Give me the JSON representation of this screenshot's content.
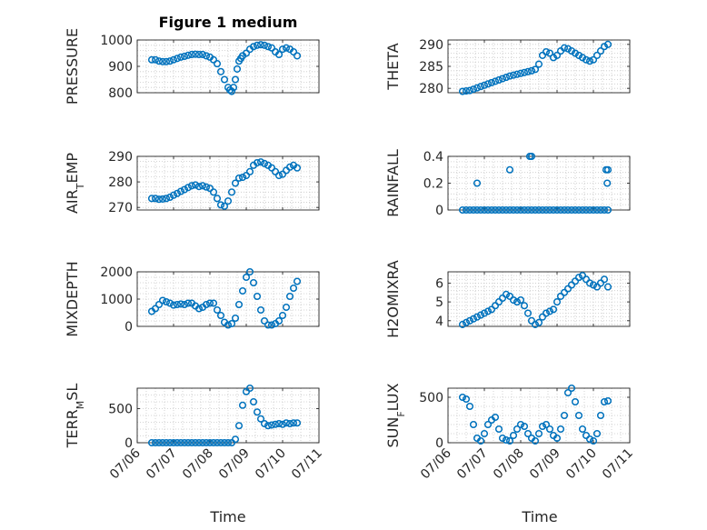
{
  "title": "Figure 1 medium",
  "xlabel": "Time",
  "colors": {
    "marker": "#0072BD",
    "axis": "#262626",
    "grid": "#c8c8c8"
  },
  "x_ticks": [
    "07/06",
    "07/07",
    "07/08",
    "07/09",
    "07/10",
    "07/11"
  ],
  "chart_data": [
    {
      "type": "scatter",
      "ylabel": "PRESSURE",
      "ylim": [
        800,
        1000
      ],
      "yticks": [
        800,
        900,
        1000
      ],
      "grid": true,
      "x": [
        6.4,
        6.5,
        6.6,
        6.7,
        6.8,
        6.9,
        7.0,
        7.1,
        7.2,
        7.3,
        7.4,
        7.5,
        7.6,
        7.7,
        7.8,
        7.9,
        8.0,
        8.1,
        8.2,
        8.3,
        8.4,
        8.5,
        8.55,
        8.6,
        8.65,
        8.7,
        8.75,
        8.8,
        8.85,
        8.9,
        9.0,
        9.1,
        9.2,
        9.3,
        9.4,
        9.5,
        9.6,
        9.7,
        9.8,
        9.9,
        10.0,
        10.1,
        10.2,
        10.3,
        10.4
      ],
      "y": [
        925,
        925,
        920,
        918,
        918,
        920,
        925,
        930,
        935,
        938,
        942,
        945,
        946,
        945,
        945,
        940,
        935,
        925,
        910,
        880,
        850,
        820,
        810,
        805,
        820,
        850,
        890,
        920,
        930,
        940,
        950,
        965,
        975,
        980,
        982,
        980,
        975,
        970,
        955,
        945,
        965,
        970,
        965,
        955,
        940
      ]
    },
    {
      "type": "scatter",
      "ylabel": "THETA",
      "ylim": [
        279,
        291
      ],
      "yticks": [
        280,
        285,
        290
      ],
      "grid": true,
      "x": [
        6.4,
        6.5,
        6.6,
        6.7,
        6.8,
        6.9,
        7.0,
        7.1,
        7.2,
        7.3,
        7.4,
        7.5,
        7.6,
        7.7,
        7.8,
        7.9,
        8.0,
        8.1,
        8.2,
        8.3,
        8.4,
        8.5,
        8.6,
        8.7,
        8.8,
        8.9,
        9.0,
        9.1,
        9.2,
        9.3,
        9.4,
        9.5,
        9.6,
        9.7,
        9.8,
        9.9,
        10.0,
        10.1,
        10.2,
        10.3,
        10.4
      ],
      "y": [
        279.3,
        279.4,
        279.5,
        279.8,
        280.1,
        280.4,
        280.7,
        281.0,
        281.3,
        281.6,
        281.9,
        282.2,
        282.5,
        282.8,
        283.0,
        283.2,
        283.4,
        283.6,
        283.8,
        284.0,
        284.3,
        285.5,
        287.5,
        288.3,
        288.0,
        287.0,
        287.5,
        288.5,
        289.2,
        289.0,
        288.5,
        288.0,
        287.5,
        287.0,
        286.5,
        286.2,
        286.5,
        287.5,
        288.5,
        289.5,
        290.0
      ]
    },
    {
      "type": "scatter",
      "ylabel": "AIR_TEMP",
      "ylim": [
        269,
        290
      ],
      "yticks": [
        270,
        280,
        290
      ],
      "grid": true,
      "x": [
        6.4,
        6.5,
        6.6,
        6.7,
        6.8,
        6.9,
        7.0,
        7.1,
        7.2,
        7.3,
        7.4,
        7.5,
        7.6,
        7.7,
        7.8,
        7.9,
        8.0,
        8.1,
        8.2,
        8.3,
        8.4,
        8.5,
        8.6,
        8.7,
        8.8,
        8.9,
        9.0,
        9.1,
        9.2,
        9.3,
        9.4,
        9.5,
        9.6,
        9.7,
        9.8,
        9.9,
        10.0,
        10.1,
        10.2,
        10.3,
        10.4
      ],
      "y": [
        273.5,
        273.5,
        273.2,
        273.3,
        273.5,
        274.0,
        274.8,
        275.5,
        276.3,
        277.0,
        277.8,
        278.5,
        278.8,
        278.2,
        278.5,
        278.0,
        277.5,
        276.0,
        273.5,
        271.0,
        270.5,
        272.5,
        276.0,
        279.5,
        281.5,
        281.8,
        282.5,
        284.0,
        286.5,
        287.5,
        287.8,
        287.2,
        286.5,
        285.5,
        284.0,
        282.5,
        283.0,
        284.5,
        285.8,
        286.5,
        285.5
      ]
    },
    {
      "type": "scatter",
      "ylabel": "RAINFALL",
      "ylim": [
        0,
        0.4
      ],
      "yticks": [
        0,
        0.2,
        0.4
      ],
      "grid": true,
      "x": [
        6.4,
        6.5,
        6.6,
        6.7,
        6.8,
        6.9,
        7.0,
        7.1,
        7.2,
        7.3,
        7.4,
        7.5,
        7.6,
        7.7,
        7.8,
        7.9,
        8.0,
        8.1,
        8.2,
        8.3,
        8.4,
        8.5,
        8.6,
        8.7,
        8.8,
        8.9,
        9.0,
        9.1,
        9.2,
        9.3,
        9.4,
        9.5,
        9.6,
        9.7,
        9.8,
        9.9,
        10.0,
        10.1,
        10.2,
        10.3,
        10.4,
        6.8,
        7.7,
        8.25,
        8.3,
        10.35,
        10.38,
        10.4
      ],
      "y": [
        0,
        0,
        0,
        0,
        0,
        0,
        0,
        0,
        0,
        0,
        0,
        0,
        0,
        0,
        0,
        0,
        0,
        0,
        0,
        0,
        0,
        0,
        0,
        0,
        0,
        0,
        0,
        0,
        0,
        0,
        0,
        0,
        0,
        0,
        0,
        0,
        0,
        0,
        0,
        0,
        0,
        0.2,
        0.3,
        0.4,
        0.4,
        0.3,
        0.2,
        0.3
      ]
    },
    {
      "type": "scatter",
      "ylabel": "MIXDEPTH",
      "ylim": [
        0,
        2000
      ],
      "yticks": [
        0,
        1000,
        2000
      ],
      "grid": true,
      "x": [
        6.4,
        6.5,
        6.6,
        6.7,
        6.8,
        6.9,
        7.0,
        7.1,
        7.2,
        7.3,
        7.4,
        7.5,
        7.6,
        7.7,
        7.8,
        7.9,
        8.0,
        8.1,
        8.2,
        8.3,
        8.4,
        8.5,
        8.6,
        8.7,
        8.8,
        8.9,
        9.0,
        9.1,
        9.2,
        9.3,
        9.4,
        9.5,
        9.6,
        9.7,
        9.8,
        9.9,
        10.0,
        10.1,
        10.2,
        10.3,
        10.4
      ],
      "y": [
        550,
        650,
        800,
        950,
        900,
        850,
        780,
        800,
        820,
        800,
        850,
        850,
        750,
        650,
        700,
        800,
        850,
        850,
        600,
        400,
        150,
        50,
        100,
        300,
        800,
        1300,
        1800,
        2000,
        1600,
        1100,
        600,
        200,
        50,
        50,
        100,
        200,
        400,
        700,
        1100,
        1400,
        1650
      ]
    },
    {
      "type": "scatter",
      "ylabel": "H2OMIXRA",
      "ylim": [
        3.7,
        6.6
      ],
      "yticks": [
        4,
        5,
        6
      ],
      "grid": true,
      "x": [
        6.4,
        6.5,
        6.6,
        6.7,
        6.8,
        6.9,
        7.0,
        7.1,
        7.2,
        7.3,
        7.4,
        7.5,
        7.6,
        7.7,
        7.8,
        7.9,
        8.0,
        8.1,
        8.2,
        8.3,
        8.4,
        8.5,
        8.6,
        8.7,
        8.8,
        8.9,
        9.0,
        9.1,
        9.2,
        9.3,
        9.4,
        9.5,
        9.6,
        9.7,
        9.8,
        9.9,
        10.0,
        10.1,
        10.2,
        10.3,
        10.4
      ],
      "y": [
        3.8,
        3.9,
        4.0,
        4.1,
        4.2,
        4.3,
        4.4,
        4.5,
        4.6,
        4.8,
        5.0,
        5.2,
        5.4,
        5.3,
        5.1,
        5.0,
        5.1,
        4.8,
        4.4,
        4.0,
        3.8,
        3.9,
        4.2,
        4.4,
        4.5,
        4.6,
        5.0,
        5.3,
        5.5,
        5.7,
        5.9,
        6.1,
        6.3,
        6.4,
        6.2,
        6.0,
        5.9,
        5.8,
        6.0,
        6.2,
        5.8
      ]
    },
    {
      "type": "scatter",
      "ylabel": "TERR_MSL",
      "ylim": [
        0,
        800
      ],
      "yticks": [
        0,
        500
      ],
      "grid": true,
      "x": [
        6.4,
        6.5,
        6.6,
        6.7,
        6.8,
        6.9,
        7.0,
        7.1,
        7.2,
        7.3,
        7.4,
        7.5,
        7.6,
        7.7,
        7.8,
        7.9,
        8.0,
        8.1,
        8.2,
        8.3,
        8.4,
        8.5,
        8.6,
        8.7,
        8.8,
        8.9,
        9.0,
        9.1,
        9.2,
        9.3,
        9.4,
        9.5,
        9.6,
        9.7,
        9.8,
        9.9,
        10.0,
        10.1,
        10.2,
        10.3,
        10.4
      ],
      "y": [
        0,
        0,
        0,
        0,
        0,
        0,
        0,
        0,
        0,
        0,
        0,
        0,
        0,
        0,
        0,
        0,
        0,
        0,
        0,
        0,
        0,
        0,
        0,
        50,
        250,
        550,
        750,
        800,
        600,
        450,
        350,
        280,
        250,
        260,
        270,
        280,
        270,
        290,
        280,
        290,
        290
      ]
    },
    {
      "type": "scatter",
      "ylabel": "SUN_FLUX",
      "ylim": [
        0,
        600
      ],
      "yticks": [
        0,
        500
      ],
      "grid": true,
      "x": [
        6.4,
        6.5,
        6.6,
        6.7,
        6.8,
        6.9,
        7.0,
        7.1,
        7.2,
        7.3,
        7.4,
        7.5,
        7.6,
        7.7,
        7.8,
        7.9,
        8.0,
        8.1,
        8.2,
        8.3,
        8.4,
        8.5,
        8.6,
        8.7,
        8.8,
        8.9,
        9.0,
        9.1,
        9.2,
        9.3,
        9.4,
        9.5,
        9.6,
        9.7,
        9.8,
        9.9,
        10.0,
        10.1,
        10.2,
        10.3,
        10.4
      ],
      "y": [
        500,
        480,
        400,
        200,
        50,
        20,
        100,
        200,
        250,
        280,
        150,
        50,
        30,
        20,
        80,
        150,
        200,
        180,
        100,
        50,
        20,
        100,
        180,
        200,
        150,
        80,
        50,
        150,
        300,
        550,
        600,
        450,
        300,
        150,
        80,
        40,
        20,
        100,
        300,
        450,
        460
      ]
    }
  ]
}
